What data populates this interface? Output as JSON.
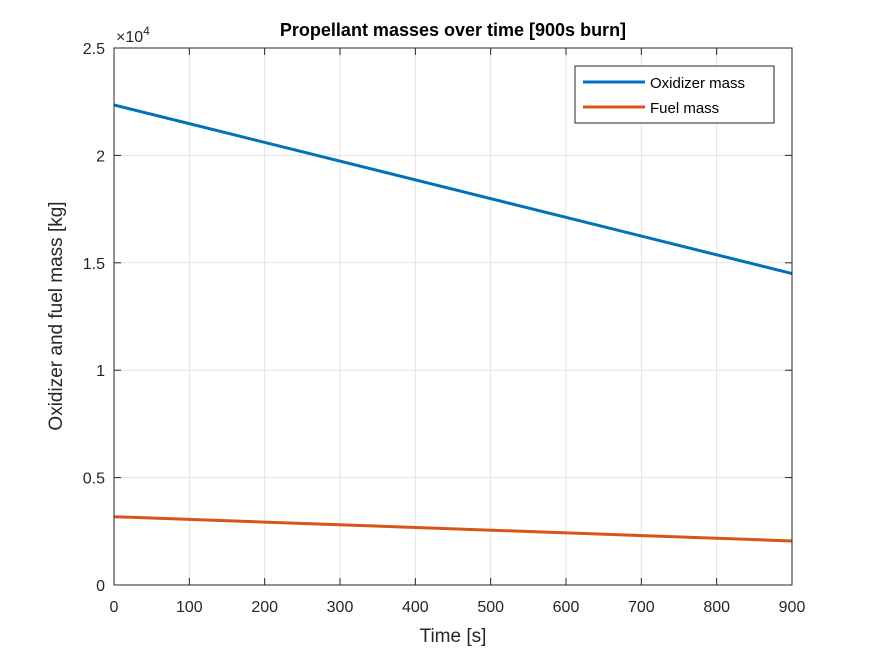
{
  "chart_data": {
    "type": "line",
    "title": "Propellant masses over time [900s burn]",
    "xlabel": "Time [s]",
    "ylabel": "Oxidizer and fuel mass [kg]",
    "xlim": [
      0,
      900
    ],
    "ylim": [
      0,
      25000
    ],
    "xticks": [
      0,
      100,
      200,
      300,
      400,
      500,
      600,
      700,
      800,
      900
    ],
    "xtick_labels": [
      "0",
      "100",
      "200",
      "300",
      "400",
      "500",
      "600",
      "700",
      "800",
      "900"
    ],
    "yticks": [
      0,
      5000,
      10000,
      15000,
      20000,
      25000
    ],
    "ytick_labels": [
      "0",
      "0.5",
      "1",
      "1.5",
      "2",
      "2.5"
    ],
    "y_exponent": {
      "base": "×10",
      "power": "4"
    },
    "grid": true,
    "legend_position": "top-right",
    "x": [
      0,
      900
    ],
    "series": [
      {
        "name": "Oxidizer mass",
        "color": "#0072BD",
        "values": [
          22350,
          14500
        ]
      },
      {
        "name": "Fuel mass",
        "color": "#D95319",
        "values": [
          3180,
          2050
        ]
      }
    ]
  }
}
